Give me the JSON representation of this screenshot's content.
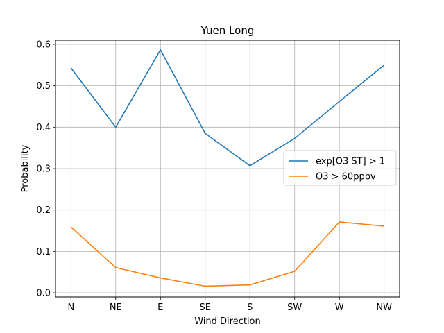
{
  "chart_data": {
    "type": "line",
    "title": "Yuen Long",
    "xlabel": "Wind Direction",
    "ylabel": "Probability",
    "categories": [
      "N",
      "NE",
      "E",
      "SE",
      "S",
      "SW",
      "W",
      "NW"
    ],
    "ylim": [
      -0.01,
      0.61
    ],
    "yticks": [
      "0.0",
      "0.1",
      "0.2",
      "0.3",
      "0.4",
      "0.5",
      "0.6"
    ],
    "grid": true,
    "legend_position": "center-right",
    "series": [
      {
        "name": "exp[O3 ST] > 1",
        "color": "#1f77b4",
        "values": [
          0.543,
          0.4,
          0.587,
          0.385,
          0.307,
          0.373,
          0.462,
          0.55
        ]
      },
      {
        "name": "O3 > 60ppbv",
        "color": "#ff7f0e",
        "values": [
          0.159,
          0.061,
          0.036,
          0.016,
          0.019,
          0.052,
          0.171,
          0.161
        ]
      }
    ]
  }
}
